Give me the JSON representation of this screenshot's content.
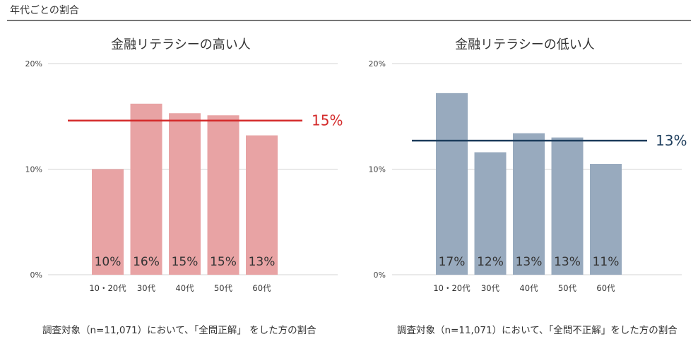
{
  "header": {
    "title": "年代ごとの割合"
  },
  "chart_data": [
    {
      "type": "bar",
      "title": "金融リテラシーの高い人",
      "categories": [
        "10・20代",
        "30代",
        "40代",
        "50代",
        "60代"
      ],
      "values": [
        10,
        16,
        15,
        15,
        13
      ],
      "data_labels": [
        "10%",
        "16%",
        "15%",
        "15%",
        "13%"
      ],
      "ylim": [
        0,
        20
      ],
      "yticks": [
        "0%",
        "10%",
        "20%"
      ],
      "ytick_values": [
        0,
        10,
        20
      ],
      "reference_line": {
        "value": 14.6,
        "label": "15%"
      },
      "bar_color": "#e8a3a4",
      "line_color": "#d42a2a",
      "grid": true,
      "caption": "調査対象（n=11,071）において、「全問正解」 をした方の割合",
      "exact_values": [
        10.0,
        16.2,
        15.3,
        15.1,
        13.2
      ]
    },
    {
      "type": "bar",
      "title": "金融リテラシーの低い人",
      "categories": [
        "10・20代",
        "30代",
        "40代",
        "50代",
        "60代"
      ],
      "values": [
        17,
        12,
        13,
        13,
        11
      ],
      "data_labels": [
        "17%",
        "12%",
        "13%",
        "13%",
        "11%"
      ],
      "ylim": [
        0,
        20
      ],
      "yticks": [
        "0%",
        "10%",
        "20%"
      ],
      "ytick_values": [
        0,
        10,
        20
      ],
      "reference_line": {
        "value": 12.7,
        "label": "13%"
      },
      "bar_color": "#98aabe",
      "line_color": "#1d3d5c",
      "grid": true,
      "caption": "調査対象（n=11,071）において、「全問不正解」をした方の割合",
      "exact_values": [
        17.2,
        11.6,
        13.4,
        13.0,
        10.5
      ]
    }
  ]
}
